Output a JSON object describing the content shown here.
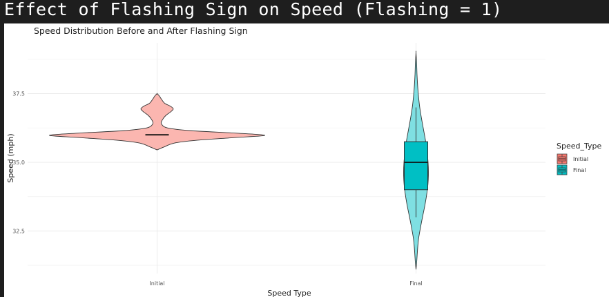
{
  "window": {
    "title": "Effect of Flashing Sign on Speed (Flashing = 1)"
  },
  "chart_data": {
    "type": "violin",
    "title": "Speed Distribution Before and After Flashing Sign",
    "xlabel": "Speed Type",
    "ylabel": "Speed (mph)",
    "categories": [
      "Initial",
      "Final"
    ],
    "ylim": [
      30.95,
      39.35
    ],
    "yticks": [
      32.5,
      35.0,
      37.5
    ],
    "ytick_labels": [
      "32.5",
      "35.0",
      "37.5"
    ],
    "grid": true,
    "legend": {
      "title": "Speed_Type",
      "position": "right",
      "entries": [
        "Initial",
        "Final"
      ]
    },
    "series": [
      {
        "name": "Initial",
        "color": "#F8766D",
        "fill_light": "#FBB6B0",
        "violin_range": [
          35.45,
          37.5
        ],
        "median": 36.0,
        "q1": 36.0,
        "q3": 36.0,
        "whisker_low": 36.0,
        "whisker_high": 36.0,
        "density_profile": [
          [
            35.45,
            0.0
          ],
          [
            35.55,
            0.06
          ],
          [
            35.7,
            0.16
          ],
          [
            35.8,
            0.36
          ],
          [
            35.9,
            0.72
          ],
          [
            35.98,
            1.0
          ],
          [
            36.06,
            0.74
          ],
          [
            36.15,
            0.32
          ],
          [
            36.25,
            0.1
          ],
          [
            36.4,
            0.04
          ],
          [
            36.55,
            0.05
          ],
          [
            36.7,
            0.08
          ],
          [
            36.85,
            0.13
          ],
          [
            36.95,
            0.15
          ],
          [
            37.05,
            0.12
          ],
          [
            37.15,
            0.07
          ],
          [
            37.3,
            0.04
          ],
          [
            37.42,
            0.02
          ],
          [
            37.5,
            0.0
          ]
        ]
      },
      {
        "name": "Final",
        "color": "#00BFC4",
        "fill_light": "#7FDFE2",
        "violin_range": [
          31.1,
          39.0
        ],
        "median": 35.0,
        "q1": 34.0,
        "q3": 35.75,
        "whisker_low": 33.0,
        "whisker_high": 37.0,
        "density_profile": [
          [
            31.1,
            0.0
          ],
          [
            31.4,
            0.06
          ],
          [
            31.8,
            0.12
          ],
          [
            32.2,
            0.2
          ],
          [
            32.6,
            0.35
          ],
          [
            33.0,
            0.52
          ],
          [
            33.4,
            0.7
          ],
          [
            33.8,
            0.85
          ],
          [
            34.2,
            0.96
          ],
          [
            34.6,
            1.0
          ],
          [
            35.0,
            0.97
          ],
          [
            35.4,
            0.88
          ],
          [
            35.8,
            0.76
          ],
          [
            36.2,
            0.6
          ],
          [
            36.6,
            0.44
          ],
          [
            37.0,
            0.3
          ],
          [
            37.4,
            0.2
          ],
          [
            37.8,
            0.13
          ],
          [
            38.2,
            0.08
          ],
          [
            38.6,
            0.05
          ],
          [
            39.0,
            0.0
          ]
        ]
      }
    ]
  }
}
